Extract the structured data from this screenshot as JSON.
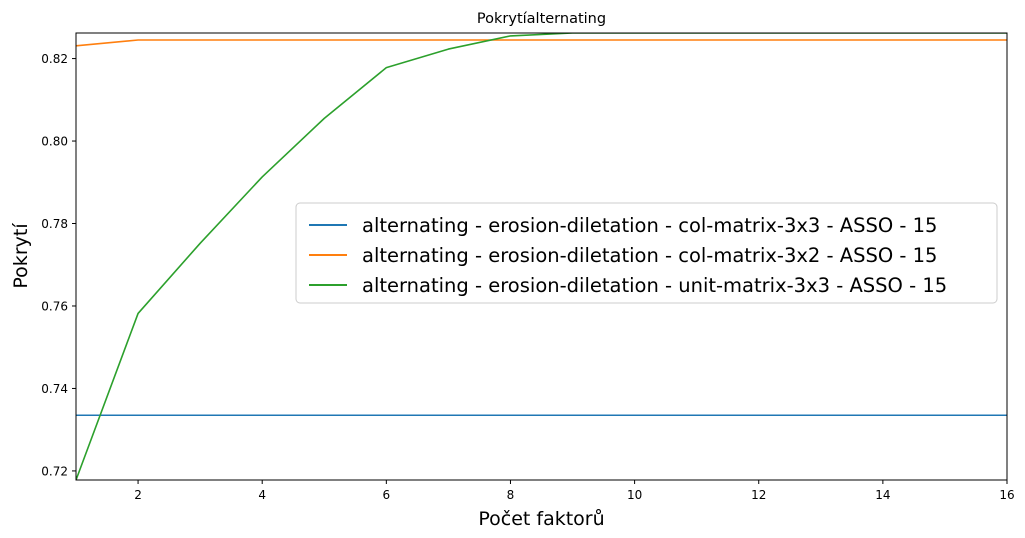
{
  "chart_data": {
    "type": "line",
    "title": "Pokrytíalternating",
    "xlabel": "Počet faktorů",
    "ylabel": "Pokrytí",
    "xlim": [
      1,
      16
    ],
    "ylim": [
      0.7178,
      0.8262
    ],
    "xticks": [
      "2",
      "4",
      "6",
      "8",
      "10",
      "12",
      "14",
      "16"
    ],
    "yticks": [
      "0.72",
      "0.74",
      "0.76",
      "0.78",
      "0.80",
      "0.82"
    ],
    "grid": false,
    "legend_position": "center-right",
    "x": [
      1,
      2,
      3,
      4,
      5,
      6,
      7,
      8,
      9,
      10,
      11,
      12,
      13,
      14,
      15,
      16
    ],
    "series": [
      {
        "name": "alternating - erosion-diletation - col-matrix-3x3 - ASSO - 15",
        "color": "#1f77b4",
        "values": [
          0.7335,
          0.7335,
          0.7335,
          0.7335,
          0.7335,
          0.7335,
          0.7335,
          0.7335,
          0.7335,
          0.7335,
          0.7335,
          0.7335,
          0.7335,
          0.7335,
          0.7335,
          0.7335
        ]
      },
      {
        "name": "alternating - erosion-diletation - col-matrix-3x2 - ASSO - 15",
        "color": "#ff7f0e",
        "values": [
          0.8231,
          0.8245,
          0.8245,
          0.8245,
          0.8245,
          0.8245,
          0.8245,
          0.8245,
          0.8245,
          0.8245,
          0.8245,
          0.8245,
          0.8245,
          0.8245,
          0.8245,
          0.8245
        ]
      },
      {
        "name": "alternating - erosion-diletation - unit-matrix-3x3 - ASSO - 15",
        "color": "#2ca02c",
        "values": [
          0.7178,
          0.7582,
          0.7752,
          0.7913,
          0.8055,
          0.8178,
          0.8223,
          0.8255,
          0.8262,
          0.8262,
          0.8262,
          0.8262,
          0.8262,
          0.8262,
          0.8262,
          0.8262
        ]
      }
    ]
  }
}
